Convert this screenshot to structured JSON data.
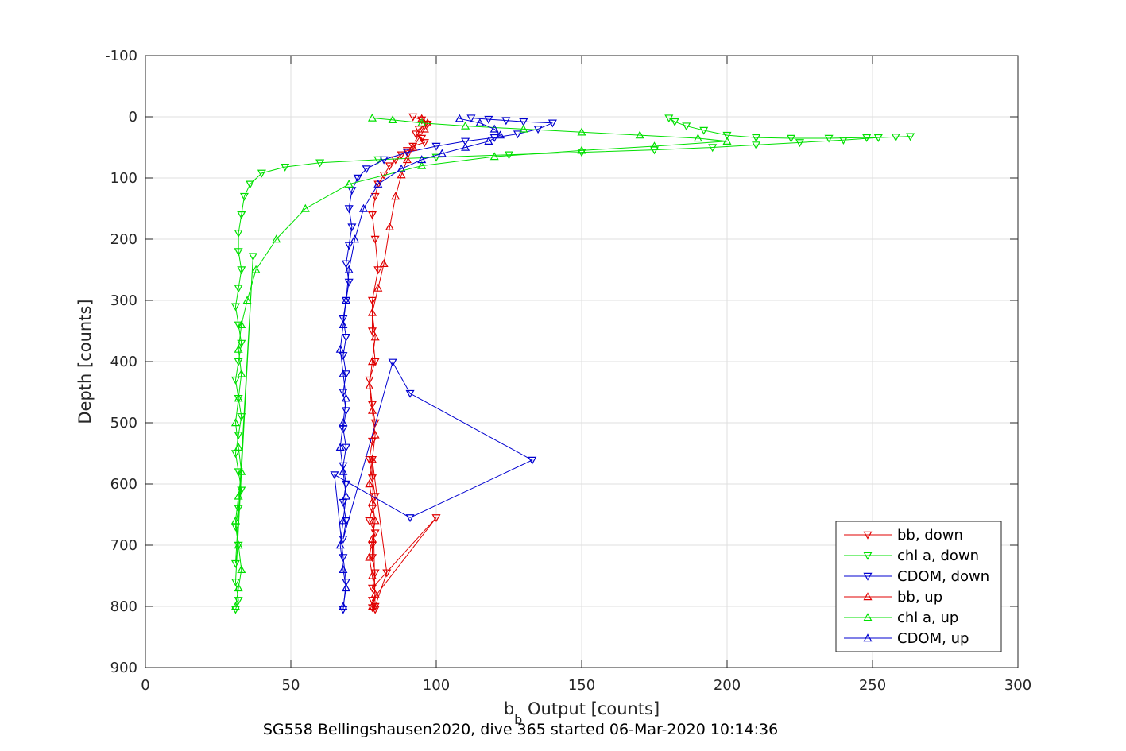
{
  "chart_data": {
    "type": "scatter",
    "title": "",
    "xlabel_main": "b",
    "xlabel_sub": "b",
    "xlabel_rest": " Output [counts]",
    "ylabel": "Depth [counts]",
    "footer": "SG558 Bellingshausen2020, dive 365 started 06-Mar-2020 10:14:36",
    "xlim": [
      0,
      300
    ],
    "ylim": [
      -100,
      900
    ],
    "y_reversed": true,
    "grid": true,
    "legend_position": "bottom-right",
    "xticks": [
      0,
      50,
      100,
      150,
      200,
      250,
      300
    ],
    "xtick_labels": [
      "0",
      "50",
      "100",
      "150",
      "200",
      "250",
      "300"
    ],
    "yticks": [
      -100,
      0,
      100,
      200,
      300,
      400,
      500,
      600,
      700,
      800,
      900
    ],
    "ytick_labels": [
      "-100",
      "0",
      "100",
      "200",
      "300",
      "400",
      "500",
      "600",
      "700",
      "800",
      "900"
    ],
    "series": [
      {
        "name": "bb, down",
        "color": "#e00000",
        "marker": "triangle-down",
        "x": [
          92,
          95,
          97,
          94,
          93,
          95,
          96,
          92,
          90,
          88,
          86,
          84,
          82,
          80,
          79,
          78,
          79,
          80,
          78,
          78,
          79,
          77,
          78,
          79,
          78,
          77,
          78,
          79,
          78,
          77,
          79,
          78,
          78,
          79,
          78,
          100,
          78,
          79,
          83,
          78,
          79,
          78
        ],
        "y": [
          0,
          5,
          12,
          20,
          28,
          35,
          42,
          48,
          55,
          62,
          70,
          80,
          95,
          110,
          130,
          160,
          200,
          250,
          300,
          350,
          400,
          430,
          470,
          500,
          530,
          560,
          590,
          620,
          640,
          660,
          680,
          700,
          720,
          745,
          770,
          655,
          790,
          800,
          745,
          560,
          805,
          802
        ]
      },
      {
        "name": "chl a, down",
        "color": "#00e000",
        "marker": "triangle-down",
        "x": [
          180,
          182,
          186,
          192,
          200,
          210,
          222,
          235,
          248,
          258,
          263,
          252,
          240,
          225,
          210,
          195,
          175,
          150,
          125,
          100,
          80,
          60,
          48,
          40,
          36,
          34,
          33,
          32,
          32,
          33,
          32,
          31,
          32,
          33,
          32,
          31,
          32,
          33,
          32,
          31,
          32,
          33,
          32,
          31,
          32,
          31,
          37,
          31,
          32,
          31
        ],
        "y": [
          2,
          8,
          15,
          22,
          30,
          34,
          35,
          35,
          34,
          33,
          32,
          34,
          38,
          42,
          46,
          50,
          54,
          58,
          62,
          66,
          70,
          75,
          82,
          92,
          110,
          130,
          160,
          190,
          220,
          250,
          280,
          310,
          340,
          370,
          400,
          430,
          460,
          490,
          520,
          550,
          580,
          610,
          640,
          670,
          700,
          730,
          228,
          760,
          790,
          805
        ]
      },
      {
        "name": "CDOM, down",
        "color": "#0000d0",
        "marker": "triangle-down",
        "x": [
          112,
          118,
          124,
          130,
          140,
          135,
          128,
          120,
          110,
          100,
          90,
          82,
          76,
          73,
          71,
          70,
          71,
          70,
          69,
          70,
          69,
          68,
          69,
          68,
          69,
          68,
          69,
          68,
          69,
          68,
          69,
          68,
          69,
          68,
          85,
          91,
          133,
          91,
          65,
          68,
          69,
          68
        ],
        "y": [
          2,
          4,
          6,
          8,
          10,
          20,
          28,
          34,
          40,
          48,
          58,
          70,
          85,
          100,
          120,
          150,
          180,
          210,
          240,
          270,
          300,
          330,
          360,
          390,
          420,
          450,
          480,
          510,
          540,
          570,
          600,
          630,
          660,
          690,
          401,
          452,
          561,
          655,
          585,
          720,
          760,
          805
        ]
      },
      {
        "name": "bb, up",
        "color": "#e00000",
        "marker": "triangle-up",
        "x": [
          78,
          79,
          78,
          77,
          78,
          79,
          78,
          77,
          78,
          79,
          78,
          77,
          78,
          79,
          78,
          80,
          82,
          84,
          86,
          88,
          90,
          92,
          94,
          96,
          97,
          95
        ],
        "y": [
          800,
          780,
          750,
          720,
          690,
          660,
          630,
          600,
          560,
          520,
          480,
          440,
          400,
          360,
          320,
          280,
          240,
          180,
          130,
          95,
          70,
          50,
          35,
          20,
          10,
          3
        ]
      },
      {
        "name": "chl a, up",
        "color": "#00e000",
        "marker": "triangle-up",
        "x": [
          31,
          32,
          33,
          32,
          31,
          32,
          33,
          32,
          31,
          32,
          33,
          32,
          33,
          35,
          38,
          45,
          55,
          70,
          95,
          120,
          150,
          175,
          200,
          190,
          170,
          150,
          130,
          110,
          95,
          85,
          78
        ],
        "y": [
          800,
          770,
          740,
          700,
          660,
          620,
          580,
          540,
          500,
          460,
          420,
          380,
          340,
          300,
          250,
          200,
          150,
          110,
          80,
          65,
          55,
          48,
          40,
          35,
          30,
          25,
          20,
          15,
          10,
          5,
          2
        ]
      },
      {
        "name": "CDOM, up",
        "color": "#0000d0",
        "marker": "triangle-up",
        "x": [
          68,
          69,
          68,
          67,
          68,
          69,
          68,
          67,
          68,
          69,
          68,
          67,
          68,
          69,
          70,
          72,
          75,
          80,
          88,
          95,
          102,
          110,
          118,
          122,
          120,
          115,
          108
        ],
        "y": [
          800,
          770,
          740,
          700,
          660,
          620,
          580,
          540,
          500,
          460,
          420,
          380,
          340,
          300,
          250,
          200,
          150,
          110,
          85,
          70,
          60,
          50,
          40,
          30,
          20,
          10,
          3
        ]
      }
    ]
  }
}
